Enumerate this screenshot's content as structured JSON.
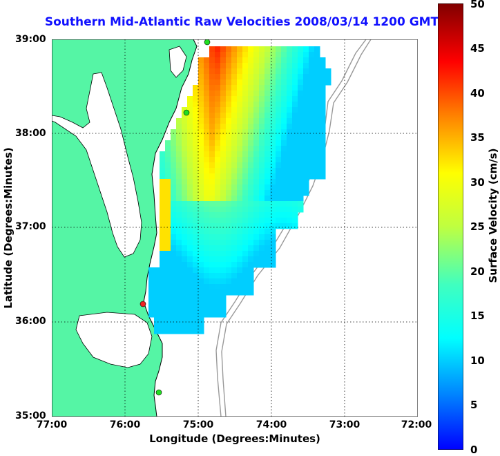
{
  "title": "Southern Mid-Atlantic Raw Velocities 2008/03/14 1200 GMT",
  "x_axis": {
    "label": "Longitude (Degrees:Minutes)",
    "ticks": [
      "77:00",
      "76:00",
      "75:00",
      "74:00",
      "73:00",
      "72:00"
    ]
  },
  "y_axis": {
    "label": "Latitude (Degrees:Minutes)",
    "ticks": [
      "39:00",
      "38:00",
      "37:00",
      "36:00",
      "35:00"
    ]
  },
  "colorbar": {
    "label": "Surface Velocity (cm/s)",
    "ticks": [
      "0",
      "5",
      "10",
      "15",
      "20",
      "25",
      "30",
      "35",
      "40",
      "45",
      "50"
    ]
  },
  "colors": {
    "land": "#55f5a5",
    "title": "#1010ff",
    "station": "#22dd22",
    "station_alert": "#ee2222",
    "bathymetry": "#999999"
  }
}
